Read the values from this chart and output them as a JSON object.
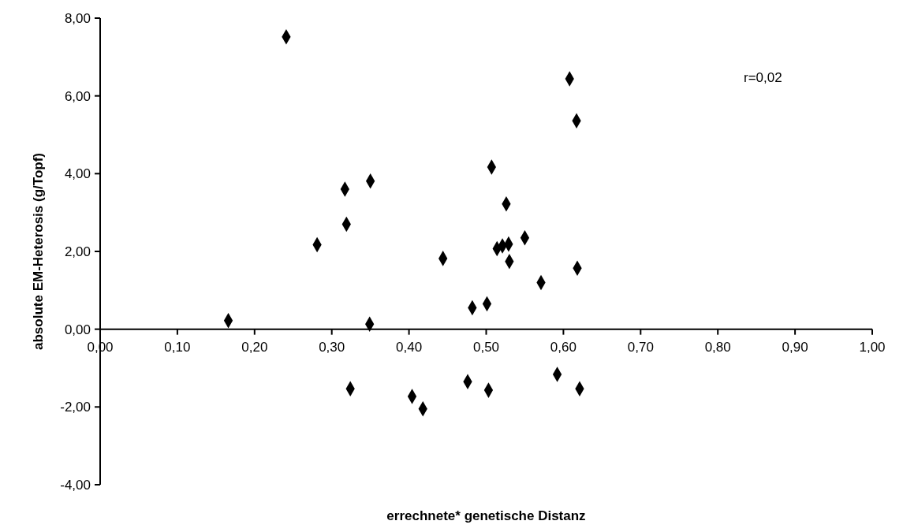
{
  "chart_data": {
    "type": "scatter",
    "xlabel": "errechnete* genetische Distanz",
    "ylabel": "absolute EM-Heterosis (g/Topf)",
    "annotations": [
      "r=0,02"
    ],
    "marker": "diamond",
    "grid": false,
    "xlim": [
      0,
      1
    ],
    "ylim": [
      -4,
      8
    ],
    "xticks": [
      {
        "value": 0,
        "label": "0,00"
      },
      {
        "value": 0.1,
        "label": "0,10"
      },
      {
        "value": 0.2,
        "label": "0,20"
      },
      {
        "value": 0.3,
        "label": "0,30"
      },
      {
        "value": 0.4,
        "label": "0,40"
      },
      {
        "value": 0.5,
        "label": "0,50"
      },
      {
        "value": 0.6,
        "label": "0,60"
      },
      {
        "value": 0.7,
        "label": "0,70"
      },
      {
        "value": 0.8,
        "label": "0,80"
      },
      {
        "value": 0.9,
        "label": "0,90"
      },
      {
        "value": 1,
        "label": "1,00"
      }
    ],
    "yticks": [
      {
        "value": -4,
        "label": "-4,00"
      },
      {
        "value": -2,
        "label": "-2,00"
      },
      {
        "value": 0,
        "label": "0,00"
      },
      {
        "value": 2,
        "label": "2,00"
      },
      {
        "value": 4,
        "label": "4,00"
      },
      {
        "value": 6,
        "label": "6,00"
      },
      {
        "value": 8,
        "label": "8,00"
      }
    ],
    "series": [
      {
        "color": "#000000",
        "x": [
          0.241,
          0.317,
          0.35,
          0.319,
          0.281,
          0.444,
          0.482,
          0.501,
          0.166,
          0.349,
          0.608,
          0.617,
          0.507,
          0.526,
          0.514,
          0.521,
          0.529,
          0.55,
          0.53,
          0.618,
          0.571,
          0.324,
          0.404,
          0.418,
          0.476,
          0.503,
          0.592,
          0.621
        ],
        "values": [
          7.52,
          3.6,
          3.81,
          2.7,
          2.17,
          1.82,
          0.55,
          0.65,
          0.22,
          0.13,
          6.44,
          5.36,
          4.17,
          3.22,
          2.07,
          2.14,
          2.19,
          2.35,
          1.74,
          1.57,
          1.2,
          -1.53,
          -1.73,
          -2.05,
          -1.35,
          -1.57,
          -1.16,
          -1.53
        ]
      }
    ]
  }
}
